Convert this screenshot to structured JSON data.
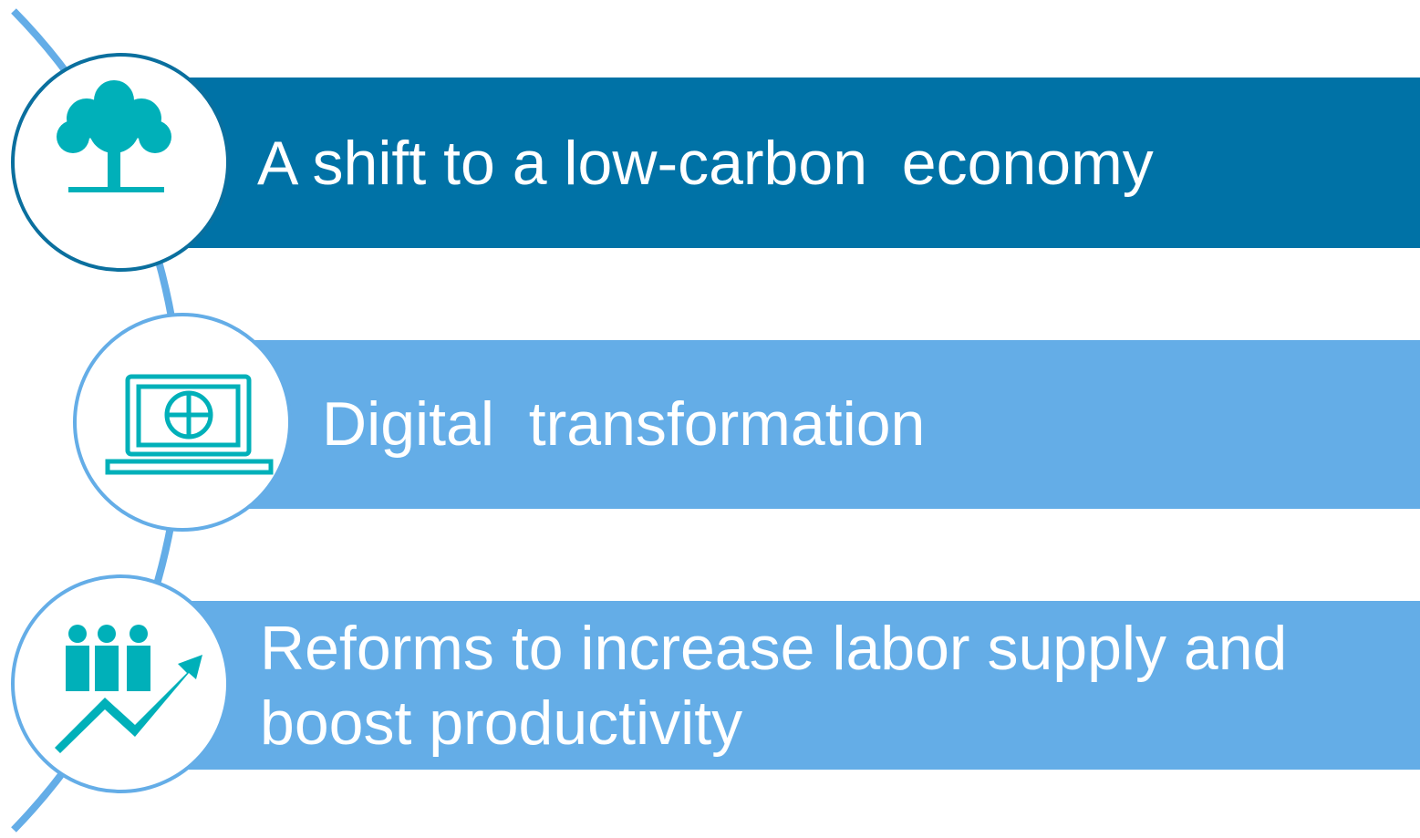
{
  "items": [
    {
      "label": "A shift to a low-carbon  economy"
    },
    {
      "label": "Digital  transformation"
    },
    {
      "label": "Reforms to increase labor supply and boost productivity"
    }
  ]
}
